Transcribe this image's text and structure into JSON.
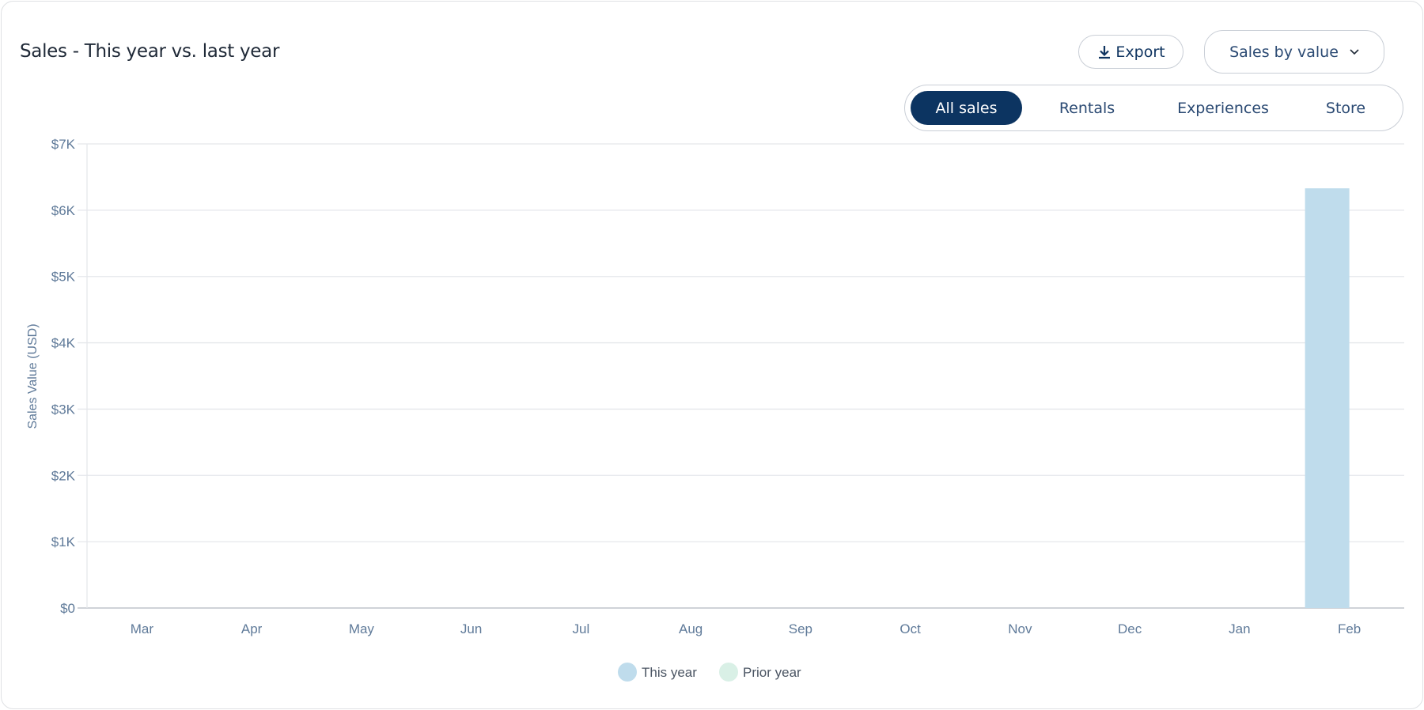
{
  "header": {
    "title": "Sales - This year vs. last year",
    "export_label": "Export",
    "metric_select": "Sales by value"
  },
  "tabs": [
    {
      "label": "All sales",
      "active": true
    },
    {
      "label": "Rentals",
      "active": false
    },
    {
      "label": "Experiences",
      "active": false
    },
    {
      "label": "Store",
      "active": false
    }
  ],
  "colors": {
    "this_year": "#bfdcec",
    "prior_year": "#d9f0e6",
    "accent": "#0c3461",
    "tick": "#5f7a99"
  },
  "chart_data": {
    "type": "bar",
    "ylabel": "Sales Value (USD)",
    "ylim": [
      0,
      7000
    ],
    "yticks": [
      "$0",
      "$1K",
      "$2K",
      "$3K",
      "$4K",
      "$5K",
      "$6K",
      "$7K"
    ],
    "ytick_values": [
      0,
      1000,
      2000,
      3000,
      4000,
      5000,
      6000,
      7000
    ],
    "grid": true,
    "legend_position": "bottom",
    "categories": [
      "Mar",
      "Apr",
      "May",
      "Jun",
      "Jul",
      "Aug",
      "Sep",
      "Oct",
      "Nov",
      "Dec",
      "Jan",
      "Feb"
    ],
    "series": [
      {
        "name": "This year",
        "values": [
          0,
          0,
          0,
          0,
          0,
          0,
          0,
          0,
          0,
          0,
          0,
          6330
        ]
      },
      {
        "name": "Prior year",
        "values": [
          0,
          0,
          0,
          0,
          0,
          0,
          0,
          0,
          0,
          0,
          0,
          0
        ]
      }
    ]
  }
}
